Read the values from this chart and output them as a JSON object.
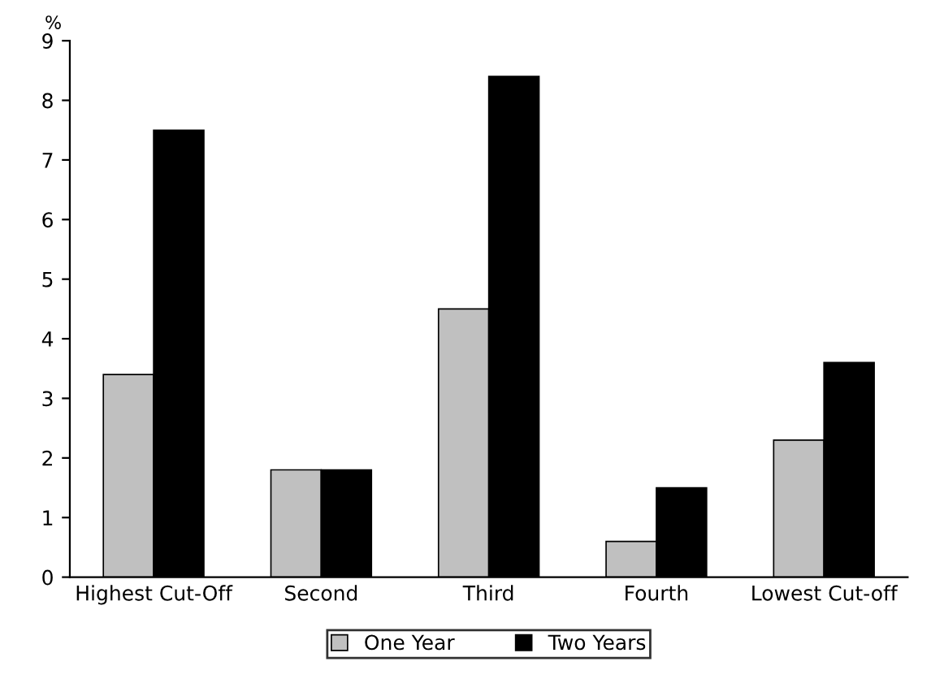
{
  "chart_data": {
    "type": "bar",
    "ylabel": "%",
    "categories": [
      "Highest Cut-Off",
      "Second",
      "Third",
      "Fourth",
      "Lowest Cut-off"
    ],
    "series": [
      {
        "name": "One Year",
        "color": "#c0c0c0",
        "values": [
          3.4,
          1.8,
          4.5,
          0.6,
          2.3
        ]
      },
      {
        "name": "Two Years",
        "color": "#000000",
        "values": [
          7.5,
          1.8,
          8.4,
          1.5,
          3.6
        ]
      }
    ],
    "ylim": [
      0,
      9
    ],
    "yticks": [
      0,
      1,
      2,
      3,
      4,
      5,
      6,
      7,
      8,
      9
    ],
    "grid": false,
    "legend": "bottom"
  }
}
